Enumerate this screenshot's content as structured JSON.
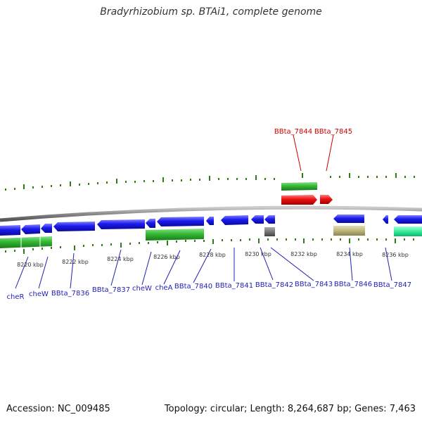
{
  "title": "Bradyrhizobium sp. BTAi1, complete genome",
  "footer": {
    "accession": "Accession: NC_009485",
    "info": "Topology: circular; Length: 8,264,687 bp; Genes: 7,463"
  },
  "colors": {
    "backbone": "#8a8a8a",
    "gene_forward": "#e61a1a",
    "gene_reverse": "#1a1aee",
    "feature_green": "#33bb33",
    "label_blue": "#1f1fb4",
    "label_red": "#cc0000",
    "tick": "#2e7d14"
  },
  "scale_labels": [
    "8220 kbp",
    "8222 kbp",
    "8224 kbp",
    "8226 kbp",
    "8228 kbp",
    "8230 kbp",
    "8232 kbp",
    "8234 kbp",
    "8236 kbp"
  ],
  "gene_labels_top": [
    "BBta_7844",
    "BBta_7845"
  ],
  "gene_labels_bottom": [
    "cheR",
    "cheW",
    "BBta_7836",
    "BBta_7837",
    "cheW",
    "cheA",
    "BBta_7840",
    "BBta_7841",
    "BBta_7842",
    "BBta_7843",
    "BBta_7846",
    "BBta_7847"
  ]
}
